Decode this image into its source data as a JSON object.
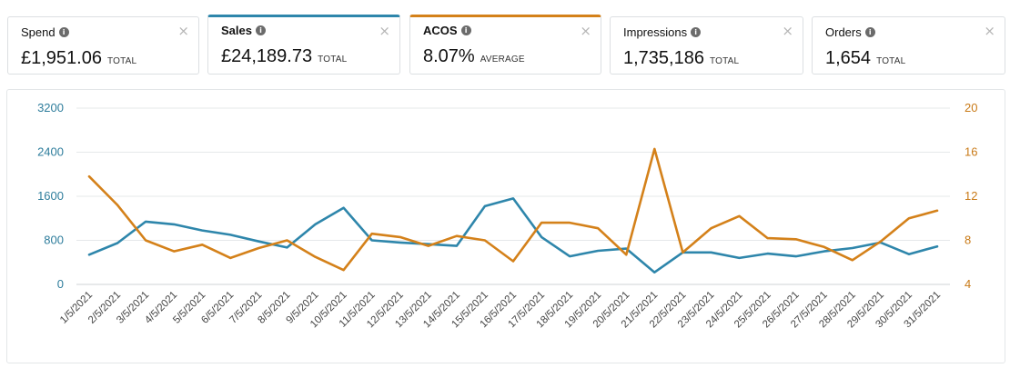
{
  "metrics": [
    {
      "label": "Spend",
      "value": "£1,951.06",
      "sub": "TOTAL",
      "selected": false,
      "accent": ""
    },
    {
      "label": "Sales",
      "value": "£24,189.73",
      "sub": "TOTAL",
      "selected": true,
      "accent": "#2e86ab"
    },
    {
      "label": "ACOS",
      "value": "8.07%",
      "sub": "AVERAGE",
      "selected": true,
      "accent": "#d4811a"
    },
    {
      "label": "Impressions",
      "value": "1,735,186",
      "sub": "TOTAL",
      "selected": false,
      "accent": ""
    },
    {
      "label": "Orders",
      "value": "1,654",
      "sub": "TOTAL",
      "selected": false,
      "accent": ""
    }
  ],
  "icons": {
    "info": "info-icon",
    "close": "close-icon"
  },
  "chart_data": {
    "type": "line",
    "title": "",
    "x": [
      "1/5/2021",
      "2/5/2021",
      "3/5/2021",
      "4/5/2021",
      "5/5/2021",
      "6/5/2021",
      "7/5/2021",
      "8/5/2021",
      "9/5/2021",
      "10/5/2021",
      "11/5/2021",
      "12/5/2021",
      "13/5/2021",
      "14/5/2021",
      "15/5/2021",
      "16/5/2021",
      "17/5/2021",
      "18/5/2021",
      "19/5/2021",
      "20/5/2021",
      "21/5/2021",
      "22/5/2021",
      "23/5/2021",
      "24/5/2021",
      "25/5/2021",
      "26/5/2021",
      "27/5/2021",
      "28/5/2021",
      "29/5/2021",
      "30/5/2021",
      "31/5/2021"
    ],
    "left_axis": {
      "ticks": [
        "0",
        "800",
        "1600",
        "2400",
        "3200"
      ],
      "ylim": [
        0,
        3200
      ],
      "color": "#2e7d9c"
    },
    "right_axis": {
      "ticks": [
        "4",
        "8",
        "12",
        "16",
        "20"
      ],
      "ylim": [
        4,
        20
      ],
      "color": "#c97a17"
    },
    "grid": true,
    "series": [
      {
        "axis": "left",
        "color": "#2e86ab",
        "values": [
          540,
          750,
          1140,
          1090,
          980,
          900,
          780,
          670,
          1090,
          1390,
          800,
          760,
          730,
          700,
          1420,
          1560,
          860,
          510,
          610,
          650,
          220,
          580,
          580,
          480,
          560,
          510,
          600,
          660,
          760,
          550,
          690
        ]
      },
      {
        "axis": "right",
        "color": "#d4811a",
        "values": [
          13.8,
          11.2,
          8.0,
          7.0,
          7.6,
          6.4,
          7.3,
          8.0,
          6.5,
          5.3,
          8.6,
          8.3,
          7.5,
          8.4,
          8.0,
          6.1,
          9.6,
          9.6,
          9.1,
          6.7,
          16.3,
          6.9,
          9.1,
          10.2,
          8.2,
          8.1,
          7.4,
          6.2,
          7.9,
          10.0,
          10.7
        ]
      }
    ]
  }
}
